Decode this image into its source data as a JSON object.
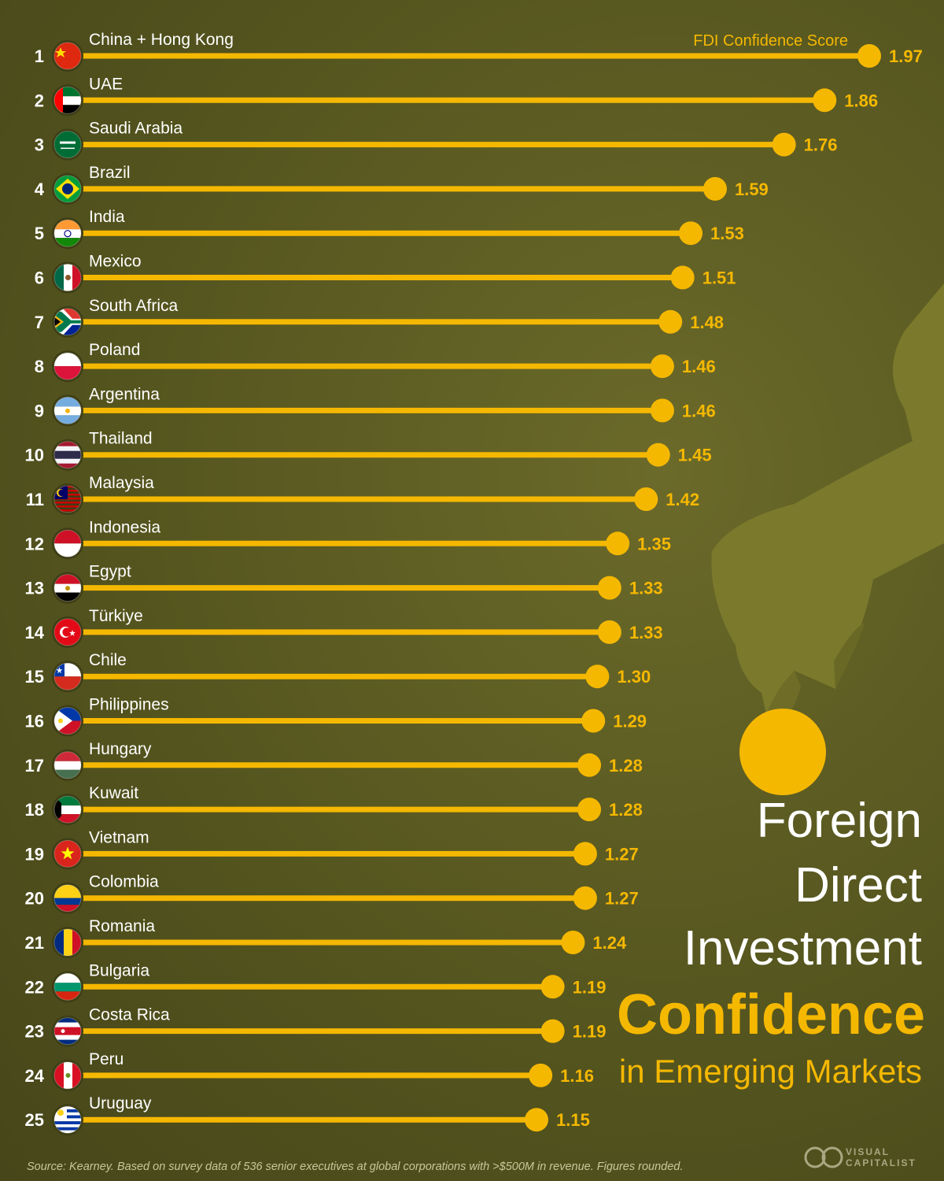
{
  "chart_data": {
    "type": "bar",
    "orientation": "horizontal",
    "title": [
      "Foreign",
      "Direct",
      "Investment"
    ],
    "title_highlight": "Confidence",
    "subtitle": "in Emerging Markets",
    "series_name": "FDI Confidence Score",
    "xlim": [
      0,
      2.05
    ],
    "grid": false,
    "legend": "none",
    "bar_color": "#f5b800",
    "ranks": [
      1,
      2,
      3,
      4,
      5,
      6,
      7,
      8,
      9,
      10,
      11,
      12,
      13,
      14,
      15,
      16,
      17,
      18,
      19,
      20,
      21,
      22,
      23,
      24,
      25
    ],
    "categories": [
      "China + Hong Kong",
      "UAE",
      "Saudi Arabia",
      "Brazil",
      "India",
      "Mexico",
      "South Africa",
      "Poland",
      "Argentina",
      "Thailand",
      "Malaysia",
      "Indonesia",
      "Egypt",
      "Türkiye",
      "Chile",
      "Philippines",
      "Hungary",
      "Kuwait",
      "Vietnam",
      "Colombia",
      "Romania",
      "Bulgaria",
      "Costa Rica",
      "Peru",
      "Uruguay"
    ],
    "values": [
      1.97,
      1.86,
      1.76,
      1.59,
      1.53,
      1.51,
      1.48,
      1.46,
      1.46,
      1.45,
      1.42,
      1.35,
      1.33,
      1.33,
      1.3,
      1.29,
      1.28,
      1.28,
      1.27,
      1.27,
      1.24,
      1.19,
      1.19,
      1.16,
      1.15
    ],
    "value_labels": [
      "1.97",
      "1.86",
      "1.76",
      "1.59",
      "1.53",
      "1.51",
      "1.48",
      "1.46",
      "1.46",
      "1.45",
      "1.42",
      "1.35",
      "1.33",
      "1.33",
      "1.30",
      "1.29",
      "1.28",
      "1.28",
      "1.27",
      "1.27",
      "1.24",
      "1.19",
      "1.19",
      "1.16",
      "1.15"
    ],
    "flags": [
      "china-flag-icon",
      "uae-flag-icon",
      "saudi-arabia-flag-icon",
      "brazil-flag-icon",
      "india-flag-icon",
      "mexico-flag-icon",
      "south-africa-flag-icon",
      "poland-flag-icon",
      "argentina-flag-icon",
      "thailand-flag-icon",
      "malaysia-flag-icon",
      "indonesia-flag-icon",
      "egypt-flag-icon",
      "turkiye-flag-icon",
      "chile-flag-icon",
      "philippines-flag-icon",
      "hungary-flag-icon",
      "kuwait-flag-icon",
      "vietnam-flag-icon",
      "colombia-flag-icon",
      "romania-flag-icon",
      "bulgaria-flag-icon",
      "costa-rica-flag-icon",
      "peru-flag-icon",
      "uruguay-flag-icon"
    ],
    "source": "Source: Kearney. Based on survey data of 536 senior executives at global corporations with >$500M in revenue. Figures rounded."
  },
  "brand": {
    "line1": "VISUAL",
    "line2": "CAPITALIST",
    "icon": "visual-capitalist-logo-icon"
  },
  "illustration": {
    "icon": "hand-holding-coin-icon",
    "coin_color": "#f5b800",
    "hand_color": "#7c7a2c"
  }
}
